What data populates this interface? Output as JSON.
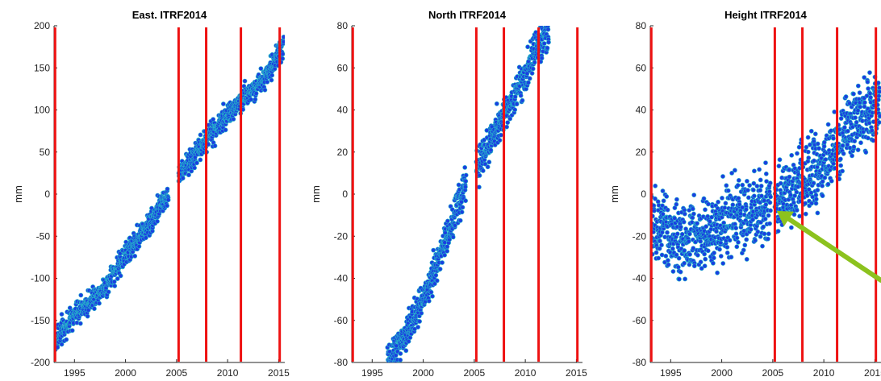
{
  "chart_data": [
    {
      "type": "scatter",
      "title": "East. ITRF2014",
      "xlabel": "",
      "ylabel": "mm",
      "xlim": [
        1993.0,
        2015.6
      ],
      "ylim": [
        -200,
        200
      ],
      "xticks": [
        1995,
        2000,
        2005,
        2010,
        2015
      ],
      "yticks": [
        -200,
        -150,
        -100,
        -50,
        0,
        50,
        100,
        150,
        200
      ],
      "grid": false,
      "marker_color": "#1a3fe0",
      "marker_edge_color": "#27b9c9",
      "breaks_color": "#ee1111",
      "breaks": [
        1993.1,
        2005.2,
        2007.9,
        2011.3,
        2015.1
      ],
      "series": [
        {
          "segments": [
            {
              "x": [
                1993.1,
                1994.5,
                1996.0,
                1998.0,
                2000.0,
                2002.0,
                2004.2
              ],
              "y": [
                -175,
                -150,
                -132,
                -110,
                -72,
                -40,
                0
              ]
            },
            {
              "x": [
                2005.2,
                2006.5,
                2008.0,
                2010.0,
                2012.0,
                2014.0,
                2015.5
              ],
              "y": [
                25,
                40,
                65,
                95,
                118,
                145,
                180
              ]
            }
          ],
          "noise": 10
        }
      ]
    },
    {
      "type": "scatter",
      "title": "North ITRF2014",
      "xlabel": "",
      "ylabel": "mm",
      "xlim": [
        1993.0,
        2015.6
      ],
      "ylim": [
        -80,
        80
      ],
      "xticks": [
        1995,
        2000,
        2005,
        2010,
        2015
      ],
      "yticks": [
        -80,
        -60,
        -40,
        -20,
        0,
        20,
        40,
        60,
        80
      ],
      "grid": false,
      "marker_color": "#1a3fe0",
      "marker_edge_color": "#27b9c9",
      "breaks_color": "#ee1111",
      "breaks": [
        1993.1,
        2005.2,
        2007.9,
        2011.3,
        2015.1
      ],
      "series": [
        {
          "segments": [
            {
              "x": [
                1996.5,
                1998.0,
                2000.0,
                2002.0,
                2004.2
              ],
              "y": [
                -80,
                -70,
                -50,
                -25,
                5
              ]
            },
            {
              "x": [
                2005.2,
                2006.5,
                2008.0,
                2009.5,
                2011.0,
                2012.3
              ],
              "y": [
                12,
                25,
                38,
                52,
                68,
                78
              ]
            }
          ],
          "noise": 6
        }
      ]
    },
    {
      "type": "scatter",
      "title": "Height ITRF2014",
      "xlabel": "",
      "ylabel": "mm",
      "xlim": [
        1993.0,
        2015.6
      ],
      "ylim": [
        -80,
        80
      ],
      "xticks": [
        1995,
        2000,
        2005,
        2010,
        2015
      ],
      "yticks": [
        -80,
        -60,
        -40,
        -20,
        0,
        20,
        40,
        60,
        80
      ],
      "grid": false,
      "marker_color": "#1a3fe0",
      "marker_edge_color": "#27b9c9",
      "breaks_color": "#ee1111",
      "breaks": [
        1993.1,
        2005.2,
        2007.9,
        2011.3,
        2015.1
      ],
      "arrow_color": "#8cc21e",
      "arrow_points_to": {
        "x": 2005.4,
        "y": -8
      },
      "series": [
        {
          "segments": [
            {
              "x": [
                1993.1,
                1996.0,
                2000.0,
                2003.0,
                2004.8
              ],
              "y": [
                -15,
                -22,
                -15,
                -8,
                -5
              ]
            },
            {
              "x": [
                2005.2,
                2007.0,
                2009.0,
                2011.0,
                2013.0,
                2015.5
              ],
              "y": [
                -5,
                0,
                10,
                20,
                35,
                40
              ]
            }
          ],
          "noise": 12
        }
      ]
    }
  ]
}
